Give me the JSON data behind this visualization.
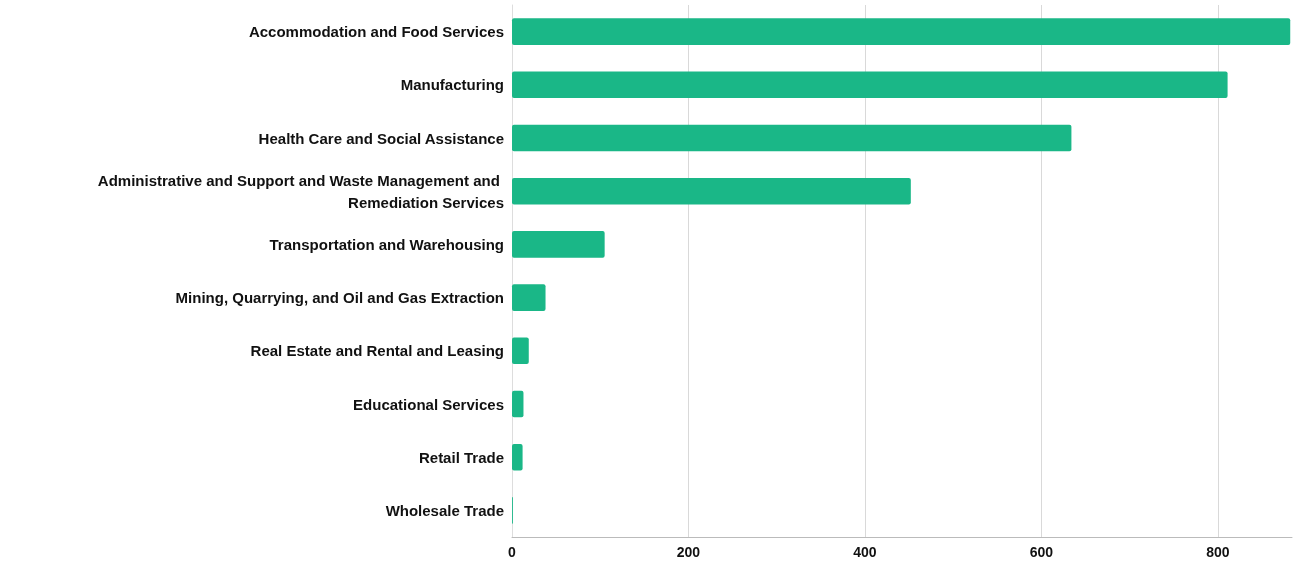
{
  "chart_data": {
    "type": "bar",
    "orientation": "horizontal",
    "categories": [
      "Accommodation and Food Services",
      "Manufacturing",
      "Health Care and Social Assistance",
      "Administrative and Support and Waste Management and Remediation Services",
      "Transportation and Warehousing",
      "Mining, Quarrying, and Oil and Gas Extraction",
      "Real Estate and Rental and Leasing",
      "Educational Services",
      "Retail Trade",
      "Wholesale Trade"
    ],
    "values": [
      882,
      811,
      634,
      452,
      105,
      38,
      19,
      13,
      12,
      1
    ],
    "color": "#1ab787",
    "xlim": [
      0,
      884
    ],
    "xticks": [
      0,
      200,
      400,
      600,
      800
    ],
    "grid": "x"
  }
}
